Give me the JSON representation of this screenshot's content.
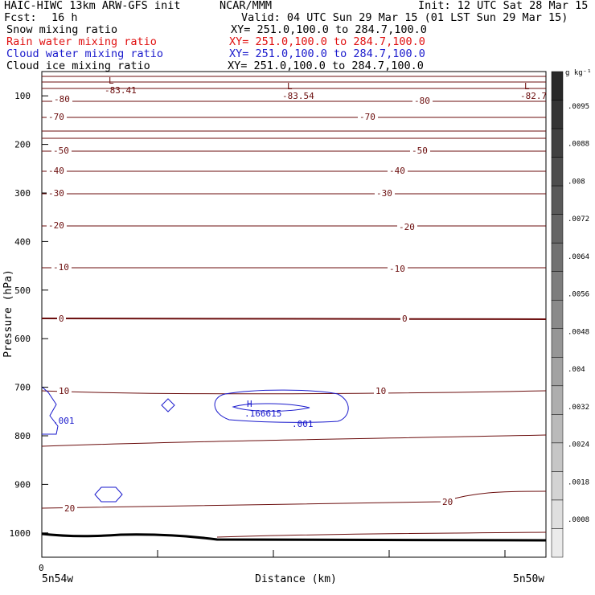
{
  "header": {
    "model": "HAIC-HIWC 13km ARW-GFS init",
    "org": "NCAR/MMM",
    "init": "Init: 12 UTC Sat 28 Mar 15",
    "fcst_label": "Fcst:",
    "fcst_value": "16 h",
    "valid": "Valid: 04 UTC Sun 29 Mar 15 (01 LST Sun 29 Mar 15)",
    "fields": [
      {
        "name": "Snow mixing ratio",
        "xy": "XY= 251.0,100.0 to 284.7,100.0",
        "color": "#000000"
      },
      {
        "name": "Rain water mixing ratio",
        "xy": "XY= 251.0,100.0 to 284.7,100.0",
        "color": "#e01010"
      },
      {
        "name": "Cloud water mixing ratio",
        "xy": "XY= 251.0,100.0 to 284.7,100.0",
        "color": "#1a1acc"
      },
      {
        "name": "Cloud ice mixing ratio",
        "xy": "XY= 251.0,100.0 to 284.7,100.0",
        "color": "#000000"
      }
    ]
  },
  "chart_data": {
    "type": "contour cross-section",
    "ylabel": "Pressure (hPa)",
    "xlabel": "Distance (km)",
    "y_ticks": [
      100,
      200,
      300,
      400,
      500,
      600,
      700,
      800,
      900,
      1000
    ],
    "ylim": [
      1050,
      50
    ],
    "x_start_label": "0",
    "x_left_label": "5n54w",
    "x_right_label": "5n50w",
    "colorbar": {
      "unit_label": "g kg⁻¹",
      "labels": [
        ".0095",
        ".0088",
        ".008",
        ".0072",
        ".0064",
        ".0056",
        ".0048",
        ".004",
        ".0032",
        ".0024",
        ".0018",
        ".0008"
      ],
      "levels": 17
    },
    "temperature_contour_labels": [
      "-80",
      "-70",
      "-50",
      "-40",
      "-30",
      "-20",
      "-10",
      "0",
      "10",
      "20"
    ],
    "temperature_minima": [
      "-83.41",
      "-83.54",
      "-82.7"
    ],
    "minimum_marker": "L",
    "cloud_water": {
      "max_marker": "H",
      "max_value": ".166615",
      "contour_label": ".001",
      "color": "#1a1acc"
    },
    "temperature_color": "#6b0d0d",
    "terrain_color": "#000000"
  }
}
